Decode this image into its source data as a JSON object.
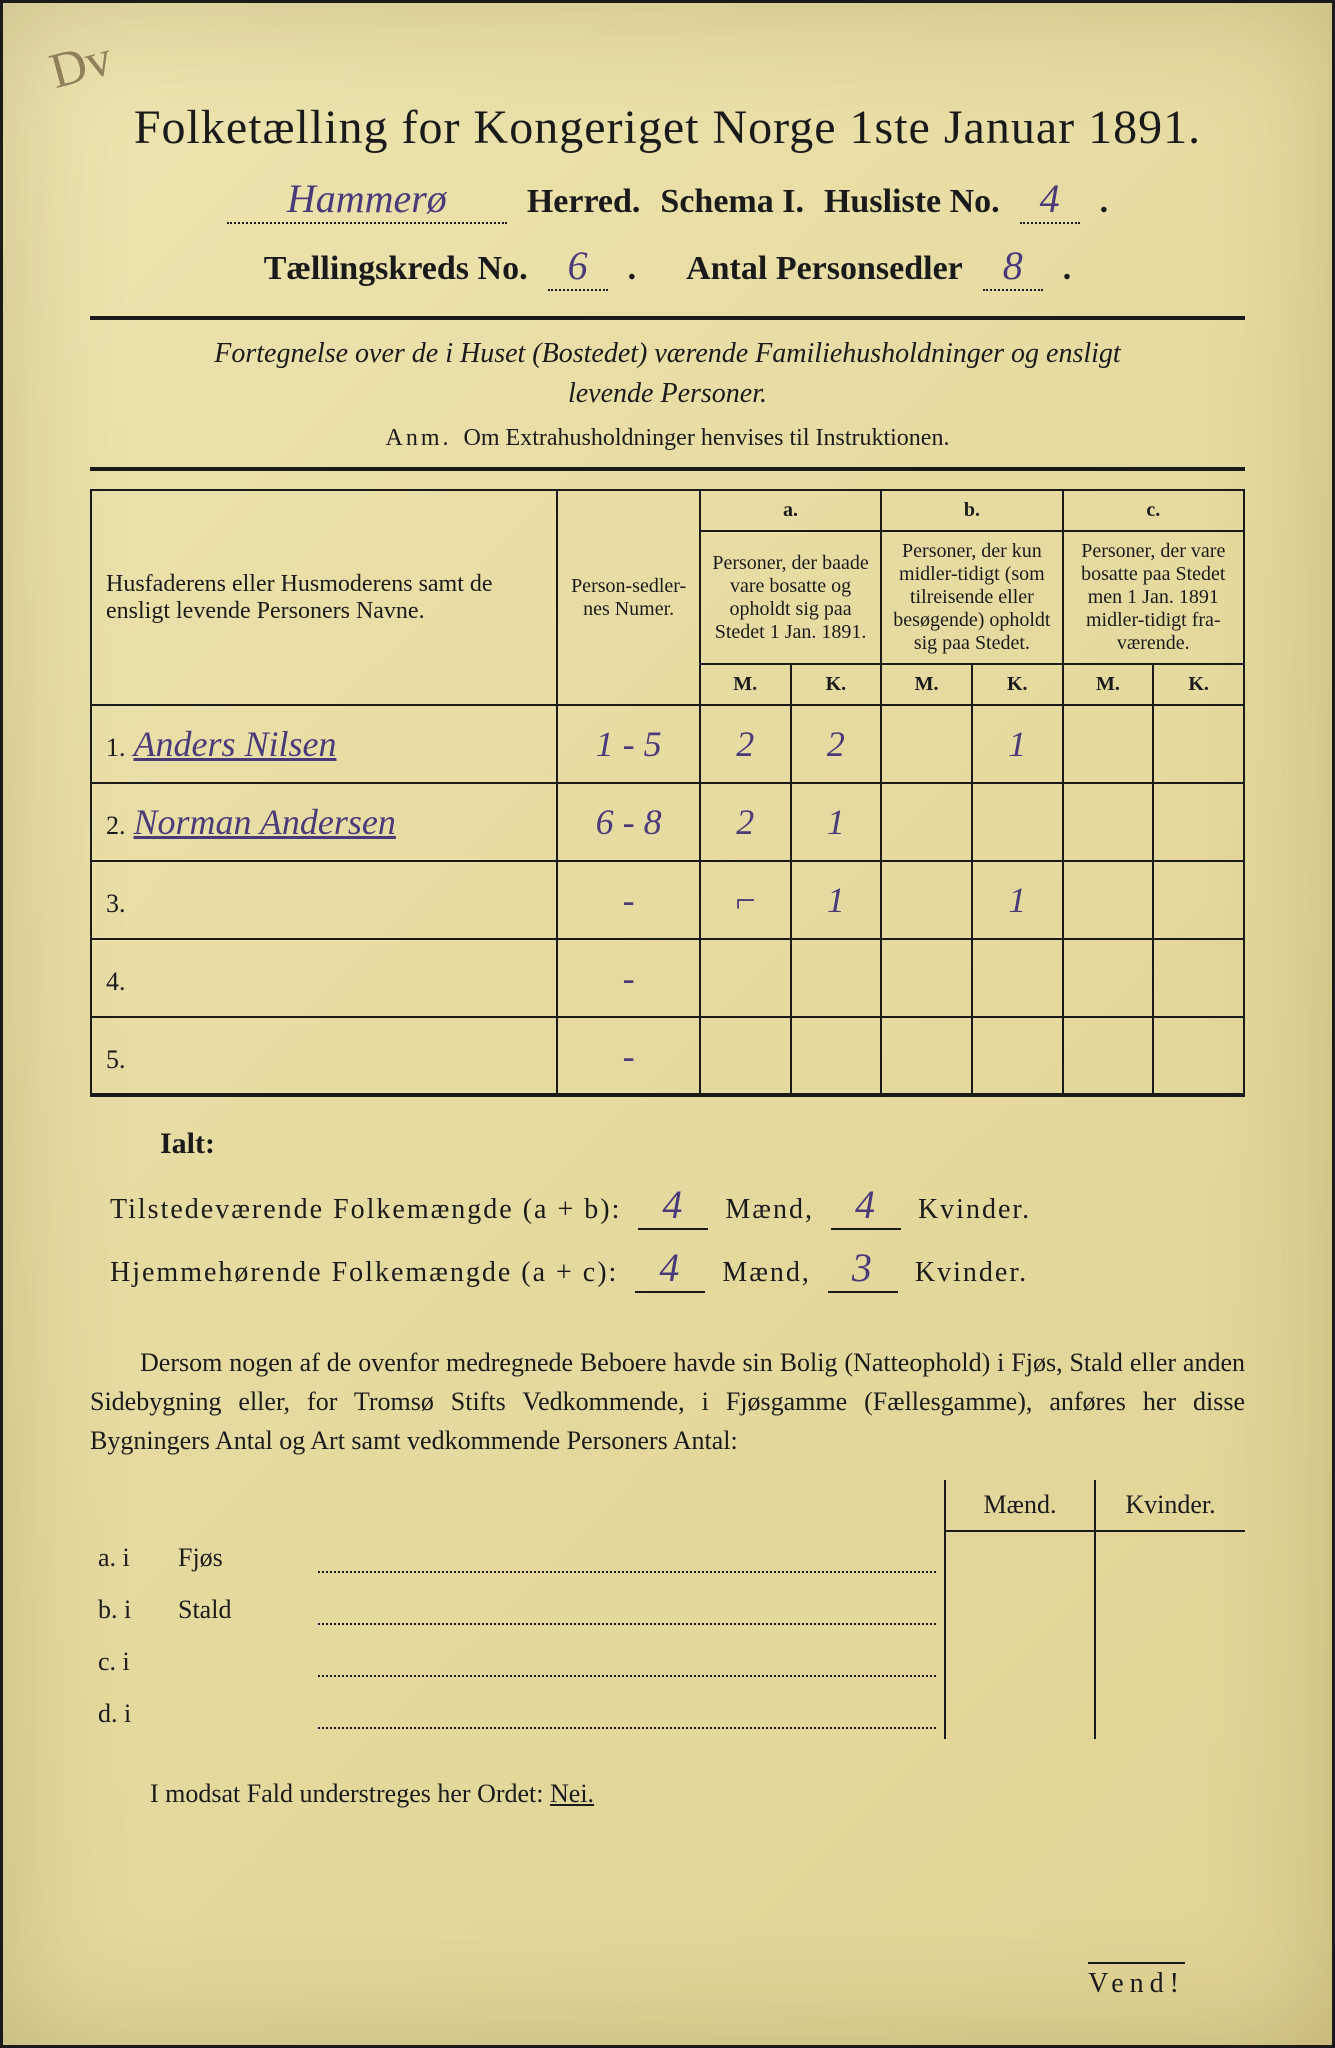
{
  "colors": {
    "paper": "#e8dfa8",
    "ink": "#1a1a1a",
    "handwriting": "#4a3a7a",
    "pencil": "#6b5a3a"
  },
  "corner_mark": "Dv",
  "title": "Folketælling for Kongeriget Norge 1ste Januar 1891.",
  "header": {
    "herred_value": "Hammerø",
    "herred_label": "Herred.",
    "schema_label": "Schema I.",
    "husliste_label": "Husliste No.",
    "husliste_value": "4",
    "kreds_label": "Tællingskreds No.",
    "kreds_value": "6",
    "antal_label": "Antal Personsedler",
    "antal_value": "8"
  },
  "subheader_line1": "Fortegnelse over de i Huset (Bostedet) værende Familiehusholdninger og ensligt",
  "subheader_line2": "levende Personer.",
  "anm_prefix": "Anm.",
  "anm_text": "Om Extrahusholdninger henvises til Instruktionen.",
  "table": {
    "col_names": "Husfaderens eller Husmoderens samt de ensligt levende Personers Navne.",
    "col_numer": "Person-sedler-nes Numer.",
    "col_a_label": "a.",
    "col_a_text": "Personer, der baade vare bosatte og opholdt sig paa Stedet 1 Jan. 1891.",
    "col_b_label": "b.",
    "col_b_text": "Personer, der kun midler-tidigt (som tilreisende eller besøgende) opholdt sig paa Stedet.",
    "col_c_label": "c.",
    "col_c_text": "Personer, der vare bosatte paa Stedet men 1 Jan. 1891 midler-tidigt fra-værende.",
    "m": "M.",
    "k": "K.",
    "rows": [
      {
        "num": "1.",
        "name": "Anders Nilsen",
        "numer": "1 - 5",
        "am": "2",
        "ak": "2",
        "bm": "",
        "bk": "1",
        "cm": "",
        "ck": ""
      },
      {
        "num": "2.",
        "name": "Norman Andersen",
        "numer": "6 - 8",
        "am": "2",
        "ak": "1",
        "bm": "",
        "bk": "",
        "cm": "",
        "ck": ""
      },
      {
        "num": "3.",
        "name": "",
        "numer": "-",
        "am": "⌐",
        "ak": "1",
        "bm": "",
        "bk": "1",
        "cm": "",
        "ck": ""
      },
      {
        "num": "4.",
        "name": "",
        "numer": "-",
        "am": "",
        "ak": "",
        "bm": "",
        "bk": "",
        "cm": "",
        "ck": ""
      },
      {
        "num": "5.",
        "name": "",
        "numer": "-",
        "am": "",
        "ak": "",
        "bm": "",
        "bk": "",
        "cm": "",
        "ck": ""
      }
    ]
  },
  "ialt": "Ialt:",
  "sum": {
    "line1_label": "Tilstedeværende Folkemængde (a + b):",
    "line1_m": "4",
    "line1_k": "4",
    "line2_label": "Hjemmehørende Folkemængde (a + c):",
    "line2_m": "4",
    "line2_k": "3",
    "maend": "Mænd,",
    "kvinder": "Kvinder."
  },
  "para": "Dersom nogen af de ovenfor medregnede Beboere havde sin Bolig (Natteophold) i Fjøs, Stald eller anden Sidebygning eller, for Tromsø Stifts Vedkommende, i Fjøsgamme (Fællesgamme), anføres her disse Bygningers Antal og Art samt vedkommende Personers Antal:",
  "lower": {
    "maend": "Mænd.",
    "kvinder": "Kvinder.",
    "rows": [
      {
        "label": "a. i",
        "place": "Fjøs"
      },
      {
        "label": "b. i",
        "place": "Stald"
      },
      {
        "label": "c. i",
        "place": ""
      },
      {
        "label": "d. i",
        "place": ""
      }
    ]
  },
  "footer": {
    "text": "I modsat Fald understreges her Ordet:",
    "nei": "Nei."
  },
  "vend": "Vend!"
}
